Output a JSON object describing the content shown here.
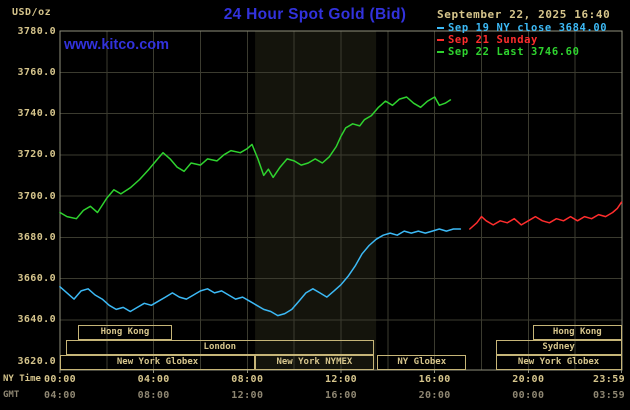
{
  "header": {
    "unit_label": "USD/oz",
    "title": "24 Hour Spot Gold (Bid)",
    "datetime": "September 22, 2025 16:40",
    "watermark": "www.kitco.com"
  },
  "colors": {
    "title_blue": "#3232dc",
    "cream": "#d6c58c",
    "box_border": "#c6b578",
    "gmt_gray": "#8e8672",
    "cyan": "#3cb9f5",
    "red": "#ff2d2d",
    "green": "#2fd32f",
    "grid": "#3b3b2f",
    "frame": "#8f8f7c",
    "band": "#14140c"
  },
  "legend": [
    {
      "label": "Sep 19 NY close 3684.00",
      "color": "#3cb9f5"
    },
    {
      "label": "Sep 21 Sunday",
      "color": "#ff2d2d"
    },
    {
      "label": "Sep 22 Last 3746.60",
      "color": "#2fd32f"
    }
  ],
  "axes": {
    "ny_label": "NY Time",
    "gmt_label": "GMT",
    "x_ticks": [
      {
        "t": 0,
        "ny": "00:00",
        "gmt": "04:00"
      },
      {
        "t": 4,
        "ny": "04:00",
        "gmt": "08:00"
      },
      {
        "t": 8,
        "ny": "08:00",
        "gmt": "12:00"
      },
      {
        "t": 12,
        "ny": "12:00",
        "gmt": "16:00"
      },
      {
        "t": 16,
        "ny": "16:00",
        "gmt": "20:00"
      },
      {
        "t": 20,
        "ny": "20:00",
        "gmt": "00:00"
      },
      {
        "t": 23.983,
        "ny": "23:59",
        "gmt": "03:59"
      }
    ],
    "x_grid_hours": [
      2,
      4,
      6,
      8,
      10,
      12,
      14,
      16,
      18,
      20,
      22
    ],
    "y_ticks": [
      {
        "value": 3620,
        "label": "3620.0"
      },
      {
        "value": 3640,
        "label": "3640.0"
      },
      {
        "value": 3660,
        "label": "3660.0"
      },
      {
        "value": 3680,
        "label": "3680.0"
      },
      {
        "value": 3700,
        "label": "3700.0"
      },
      {
        "value": 3720,
        "label": "3720.0"
      },
      {
        "value": 3740,
        "label": "3740.0"
      },
      {
        "value": 3760,
        "label": "3760.0"
      },
      {
        "value": 3780,
        "label": "3780.0"
      }
    ]
  },
  "sessions": [
    {
      "label": "Hong Kong",
      "row": 0,
      "start": 0.75,
      "end": 4.8
    },
    {
      "label": "Hong Kong",
      "row": 0,
      "start": 20.2,
      "end": 23.983
    },
    {
      "label": "London",
      "row": 1,
      "start": 0.25,
      "end": 13.4
    },
    {
      "label": "Sydney",
      "row": 1,
      "start": 18.6,
      "end": 23.983
    },
    {
      "label": "New York Globex",
      "row": 2,
      "start": 0,
      "end": 8.33
    },
    {
      "label": "New York NYMEX",
      "row": 2,
      "start": 8.33,
      "end": 13.4
    },
    {
      "label": "NY Globex",
      "row": 2,
      "start": 13.55,
      "end": 17.35
    },
    {
      "label": "New York Globex",
      "row": 2,
      "start": 18.6,
      "end": 23.983
    }
  ],
  "chart_data": {
    "type": "line",
    "title": "24 Hour Spot Gold (Bid)",
    "xlabel": "NY Time (hours, 00:00-23:59)",
    "ylabel": "USD/oz",
    "x_range_hours": [
      0,
      24
    ],
    "ylim": [
      3620,
      3780
    ],
    "grid": true,
    "legend_position": "top-right",
    "session_band": {
      "hours": [
        8.33,
        13.5
      ]
    },
    "series": [
      {
        "id": "sep19-ny-close",
        "name": "Sep 19 NY close",
        "last": 3684.0,
        "color": "#3cb9f5",
        "points": [
          [
            0,
            3656
          ],
          [
            0.3,
            3653
          ],
          [
            0.6,
            3650
          ],
          [
            0.9,
            3654
          ],
          [
            1.2,
            3655
          ],
          [
            1.5,
            3652
          ],
          [
            1.8,
            3650
          ],
          [
            2.1,
            3647
          ],
          [
            2.4,
            3645
          ],
          [
            2.7,
            3646
          ],
          [
            3,
            3644
          ],
          [
            3.3,
            3646
          ],
          [
            3.6,
            3648
          ],
          [
            3.9,
            3647
          ],
          [
            4.2,
            3649
          ],
          [
            4.5,
            3651
          ],
          [
            4.8,
            3653
          ],
          [
            5.1,
            3651
          ],
          [
            5.4,
            3650
          ],
          [
            5.7,
            3652
          ],
          [
            6,
            3654
          ],
          [
            6.3,
            3655
          ],
          [
            6.6,
            3653
          ],
          [
            6.9,
            3654
          ],
          [
            7.2,
            3652
          ],
          [
            7.5,
            3650
          ],
          [
            7.8,
            3651
          ],
          [
            8.1,
            3649
          ],
          [
            8.4,
            3647
          ],
          [
            8.7,
            3645
          ],
          [
            9,
            3644
          ],
          [
            9.3,
            3642
          ],
          [
            9.6,
            3643
          ],
          [
            9.9,
            3645
          ],
          [
            10.2,
            3649
          ],
          [
            10.5,
            3653
          ],
          [
            10.8,
            3655
          ],
          [
            11.1,
            3653
          ],
          [
            11.4,
            3651
          ],
          [
            11.7,
            3654
          ],
          [
            12,
            3657
          ],
          [
            12.3,
            3661
          ],
          [
            12.6,
            3666
          ],
          [
            12.9,
            3672
          ],
          [
            13.2,
            3676
          ],
          [
            13.5,
            3679
          ],
          [
            13.8,
            3681
          ],
          [
            14.1,
            3682
          ],
          [
            14.4,
            3681
          ],
          [
            14.7,
            3683
          ],
          [
            15,
            3682
          ],
          [
            15.3,
            3683
          ],
          [
            15.6,
            3682
          ],
          [
            15.9,
            3683
          ],
          [
            16.2,
            3684
          ],
          [
            16.5,
            3683
          ],
          [
            16.8,
            3684
          ],
          [
            17.1,
            3684
          ]
        ]
      },
      {
        "id": "sep21-sunday",
        "name": "Sep 21 Sunday",
        "color": "#ff2d2d",
        "points": [
          [
            17.5,
            3684
          ],
          [
            17.8,
            3687
          ],
          [
            18,
            3690
          ],
          [
            18.2,
            3688
          ],
          [
            18.5,
            3686
          ],
          [
            18.8,
            3688
          ],
          [
            19.1,
            3687
          ],
          [
            19.4,
            3689
          ],
          [
            19.7,
            3686
          ],
          [
            20,
            3688
          ],
          [
            20.3,
            3690
          ],
          [
            20.6,
            3688
          ],
          [
            20.9,
            3687
          ],
          [
            21.2,
            3689
          ],
          [
            21.5,
            3688
          ],
          [
            21.8,
            3690
          ],
          [
            22.1,
            3688
          ],
          [
            22.4,
            3690
          ],
          [
            22.7,
            3689
          ],
          [
            23,
            3691
          ],
          [
            23.3,
            3690
          ],
          [
            23.6,
            3692
          ],
          [
            23.8,
            3694
          ],
          [
            23.98,
            3697
          ]
        ]
      },
      {
        "id": "sep22-last",
        "name": "Sep 22",
        "last": 3746.6,
        "color": "#2fd32f",
        "points": [
          [
            0,
            3692
          ],
          [
            0.3,
            3690
          ],
          [
            0.7,
            3689
          ],
          [
            1,
            3693
          ],
          [
            1.3,
            3695
          ],
          [
            1.6,
            3692
          ],
          [
            2,
            3699
          ],
          [
            2.3,
            3703
          ],
          [
            2.6,
            3701
          ],
          [
            3,
            3704
          ],
          [
            3.4,
            3708
          ],
          [
            3.8,
            3713
          ],
          [
            4.1,
            3717
          ],
          [
            4.4,
            3721
          ],
          [
            4.7,
            3718
          ],
          [
            5,
            3714
          ],
          [
            5.3,
            3712
          ],
          [
            5.6,
            3716
          ],
          [
            6,
            3715
          ],
          [
            6.3,
            3718
          ],
          [
            6.7,
            3717
          ],
          [
            7,
            3720
          ],
          [
            7.3,
            3722
          ],
          [
            7.7,
            3721
          ],
          [
            8,
            3723
          ],
          [
            8.2,
            3725
          ],
          [
            8.45,
            3718
          ],
          [
            8.7,
            3710
          ],
          [
            8.9,
            3713
          ],
          [
            9.1,
            3709
          ],
          [
            9.4,
            3714
          ],
          [
            9.7,
            3718
          ],
          [
            10,
            3717
          ],
          [
            10.3,
            3715
          ],
          [
            10.6,
            3716
          ],
          [
            10.9,
            3718
          ],
          [
            11.2,
            3716
          ],
          [
            11.5,
            3719
          ],
          [
            11.8,
            3724
          ],
          [
            12,
            3729
          ],
          [
            12.2,
            3733
          ],
          [
            12.5,
            3735
          ],
          [
            12.8,
            3734
          ],
          [
            13,
            3737
          ],
          [
            13.3,
            3739
          ],
          [
            13.6,
            3743
          ],
          [
            13.9,
            3746
          ],
          [
            14.2,
            3744
          ],
          [
            14.5,
            3747
          ],
          [
            14.8,
            3748
          ],
          [
            15.1,
            3745
          ],
          [
            15.4,
            3743
          ],
          [
            15.7,
            3746
          ],
          [
            16,
            3748
          ],
          [
            16.2,
            3744
          ],
          [
            16.45,
            3745
          ],
          [
            16.67,
            3746.6
          ]
        ]
      }
    ]
  }
}
